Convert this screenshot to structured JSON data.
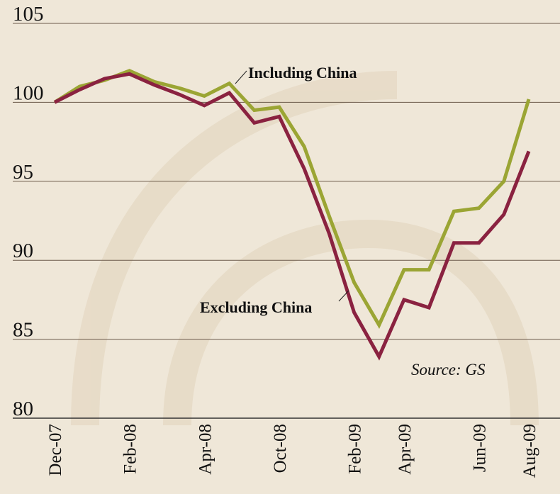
{
  "chart_data": {
    "type": "line",
    "categories": [
      "Dec-07",
      null,
      null,
      "Feb-08",
      null,
      null,
      "Apr-08",
      null,
      null,
      "Oct-08",
      null,
      null,
      "Feb-09",
      null,
      "Apr-09",
      null,
      null,
      "Jun-09",
      null,
      "Aug-09"
    ],
    "series": [
      {
        "name": "Including China",
        "color": "#9ba534",
        "values": [
          100,
          101,
          101.4,
          102,
          101.3,
          100.9,
          100.4,
          101.2,
          99.5,
          99.7,
          97.2,
          92.8,
          88.6,
          85.9,
          89.4,
          89.4,
          93.1,
          93.3,
          95,
          100.2
        ]
      },
      {
        "name": "Excluding China",
        "color": "#8a2240",
        "values": [
          100,
          100.8,
          101.5,
          101.8,
          101.1,
          100.5,
          99.8,
          100.6,
          98.7,
          99.1,
          95.8,
          91.7,
          86.7,
          83.9,
          87.5,
          87,
          91.1,
          91.1,
          92.9,
          96.9
        ]
      }
    ],
    "annotations": [
      "Source: GS"
    ],
    "ylim": [
      80,
      105
    ],
    "yticks": [
      80,
      85,
      90,
      95,
      100,
      105
    ],
    "grid": true
  }
}
